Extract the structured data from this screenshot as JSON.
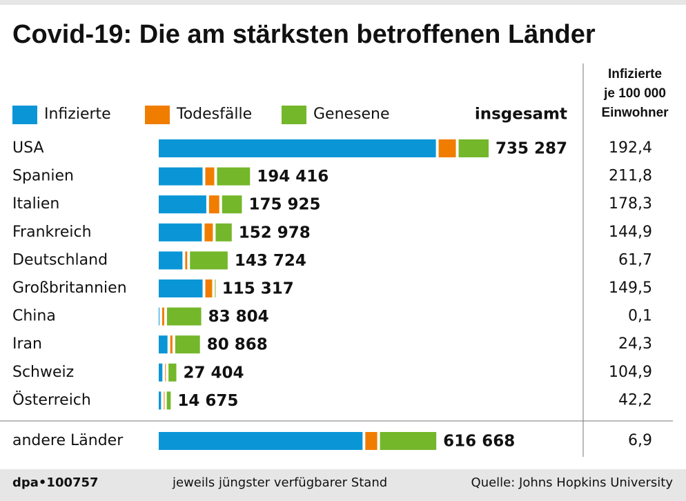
{
  "chart_data": {
    "type": "bar",
    "title": "Covid-19: Die am stärksten betroffenen Länder",
    "total_header": "insgesamt",
    "categories": [
      "USA",
      "Spanien",
      "Italien",
      "Frankreich",
      "Deutschland",
      "Großbritannien",
      "China",
      "Iran",
      "Schweiz",
      "Österreich",
      "andere Länder"
    ],
    "series": [
      {
        "name": "Infizierte",
        "color": "#0a96d6",
        "values": [
          628287,
          99316,
          107771,
          97697,
          53786,
          99383,
          1568,
          19850,
          8277,
          5279,
          462000
        ]
      },
      {
        "name": "Todesfälle",
        "color": "#f07d00",
        "values": [
          39000,
          20300,
          23227,
          18703,
          4538,
          15498,
          4636,
          5031,
          1327,
          410,
          27000
        ]
      },
      {
        "name": "Genesene",
        "color": "#74b72a",
        "values": [
          68000,
          74800,
          44927,
          36578,
          85400,
          436,
          77600,
          55987,
          17800,
          8986,
          127668
        ]
      }
    ],
    "totals": [
      735287,
      194416,
      175925,
      152978,
      143724,
      115317,
      83804,
      80868,
      27404,
      14675,
      616668
    ],
    "total_labels": [
      "735 287",
      "194 416",
      "175 925",
      "152 978",
      "143 724",
      "115 317",
      "83 804",
      "80 868",
      "27 404",
      "14 675",
      "616 668"
    ],
    "rates": {
      "header": [
        "Infizierte",
        "je 100 000",
        "Einwohner"
      ],
      "values": [
        192.4,
        211.8,
        178.3,
        144.9,
        61.7,
        149.5,
        0.1,
        24.3,
        104.9,
        42.2,
        6.9
      ],
      "value_labels": [
        "192,4",
        "211,8",
        "178,3",
        "144,9",
        "61,7",
        "149,5",
        "0,1",
        "24,3",
        "104,9",
        "42,2",
        "6,9"
      ]
    }
  },
  "footer": {
    "id": "dpa•100757",
    "note": "jeweils jüngster verfügbarer Stand",
    "source": "Quelle: Johns Hopkins University"
  }
}
